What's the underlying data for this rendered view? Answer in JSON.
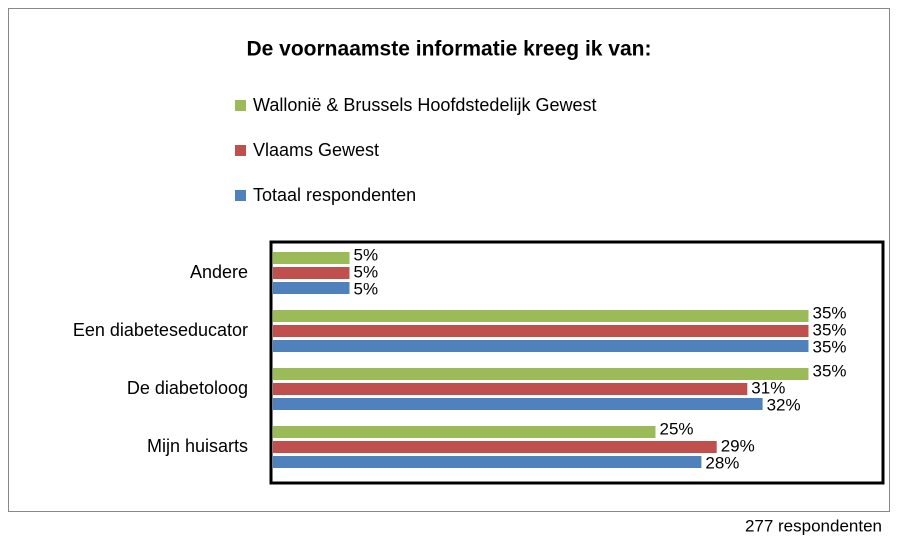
{
  "chart_data": {
    "type": "bar",
    "orientation": "horizontal",
    "title": "De voornaamste informatie kreeg ik van:",
    "categories": [
      "Andere",
      "Een diabeteseducator",
      "De diabetoloog",
      "Mijn huisarts"
    ],
    "series": [
      {
        "name": "Wallonië & Brussels Hoofdstedelijk Gewest",
        "color": "#9bbb59",
        "values": [
          5,
          35,
          35,
          25
        ],
        "value_labels": [
          "5%",
          "35%",
          "35%",
          "25%"
        ]
      },
      {
        "name": "Vlaams Gewest",
        "color": "#c0504d",
        "values": [
          5,
          35,
          31,
          29
        ],
        "value_labels": [
          "5%",
          "35%",
          "31%",
          "29%"
        ]
      },
      {
        "name": "Totaal respondenten",
        "color": "#4f81bd",
        "values": [
          5,
          35,
          32,
          28
        ],
        "value_labels": [
          "5%",
          "35%",
          "32%",
          "28%"
        ]
      }
    ],
    "legend": "top",
    "footnote": "277 respondenten"
  }
}
